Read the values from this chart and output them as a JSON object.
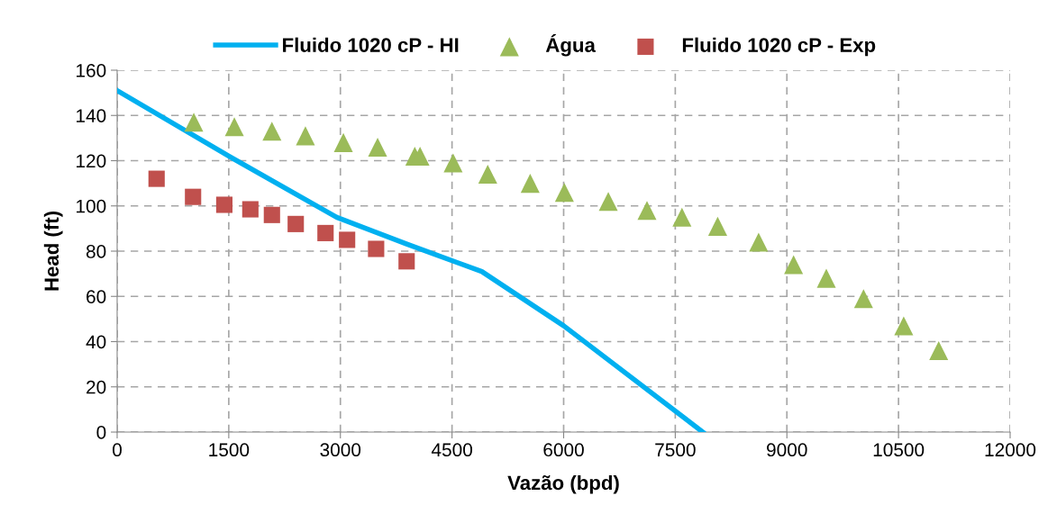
{
  "chart_data": {
    "type": "line",
    "xlabel": "Vazão (bpd)",
    "ylabel": "Head (ft)",
    "xlim": [
      0,
      12000
    ],
    "xticks": [
      0,
      1500,
      3000,
      4500,
      6000,
      7500,
      9000,
      10500,
      12000
    ],
    "ylim": [
      0,
      160
    ],
    "yticks": [
      0,
      20,
      40,
      60,
      80,
      100,
      120,
      140,
      160
    ],
    "grid": true,
    "legend": "top",
    "series": [
      {
        "name": "Fluido 1020 cP - HI",
        "color": "#00b0f0",
        "marker": "none",
        "x": [
          0,
          1500,
          2950,
          3900,
          4900,
          6000,
          7870
        ],
        "values": [
          151,
          122,
          95,
          83,
          71,
          47,
          0
        ]
      },
      {
        "name": "Água",
        "type": "scatter",
        "color": "#9bbb59",
        "marker": "triangle",
        "x": [
          1030,
          1575,
          2080,
          2530,
          3040,
          3500,
          4000,
          4070,
          4515,
          4980,
          5550,
          6010,
          6600,
          7120,
          7590,
          8070,
          8620,
          9090,
          9530,
          10030,
          10570,
          11040
        ],
        "values": [
          137,
          135,
          133,
          131,
          128,
          126,
          122,
          122,
          119,
          114,
          110,
          106,
          102,
          98,
          95,
          91,
          84,
          74,
          68,
          59,
          47,
          36
        ]
      },
      {
        "name": "Fluido 1020 cP - Exp",
        "type": "scatter",
        "color": "#c0504d",
        "marker": "square",
        "x": [
          530,
          1020,
          1440,
          1790,
          2080,
          2400,
          2800,
          3090,
          3480,
          3890
        ],
        "values": [
          112,
          104,
          100.5,
          98.5,
          96,
          92,
          88,
          85,
          81,
          75.5
        ]
      }
    ]
  }
}
